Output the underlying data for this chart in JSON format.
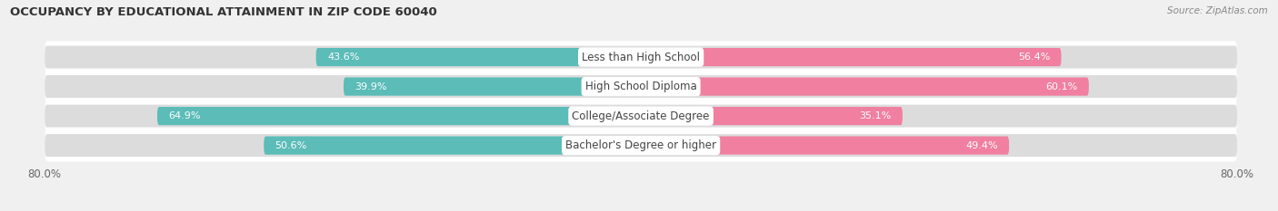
{
  "title": "OCCUPANCY BY EDUCATIONAL ATTAINMENT IN ZIP CODE 60040",
  "source": "Source: ZipAtlas.com",
  "categories": [
    "Less than High School",
    "High School Diploma",
    "College/Associate Degree",
    "Bachelor's Degree or higher"
  ],
  "owner_pct": [
    43.6,
    39.9,
    64.9,
    50.6
  ],
  "renter_pct": [
    56.4,
    60.1,
    35.1,
    49.4
  ],
  "owner_color": "#5bbcb8",
  "renter_color": "#f07fa0",
  "label_color_inside": "#ffffff",
  "label_color_outside": "#888888",
  "bar_height": 0.62,
  "xlim_left": -80.0,
  "xlim_right": 80.0,
  "background_color": "#f0f0f0",
  "bar_background": "#dcdcdc",
  "row_bg_color": "#ffffff",
  "title_fontsize": 9.5,
  "source_fontsize": 7.5,
  "label_fontsize": 8,
  "category_fontsize": 8.5
}
